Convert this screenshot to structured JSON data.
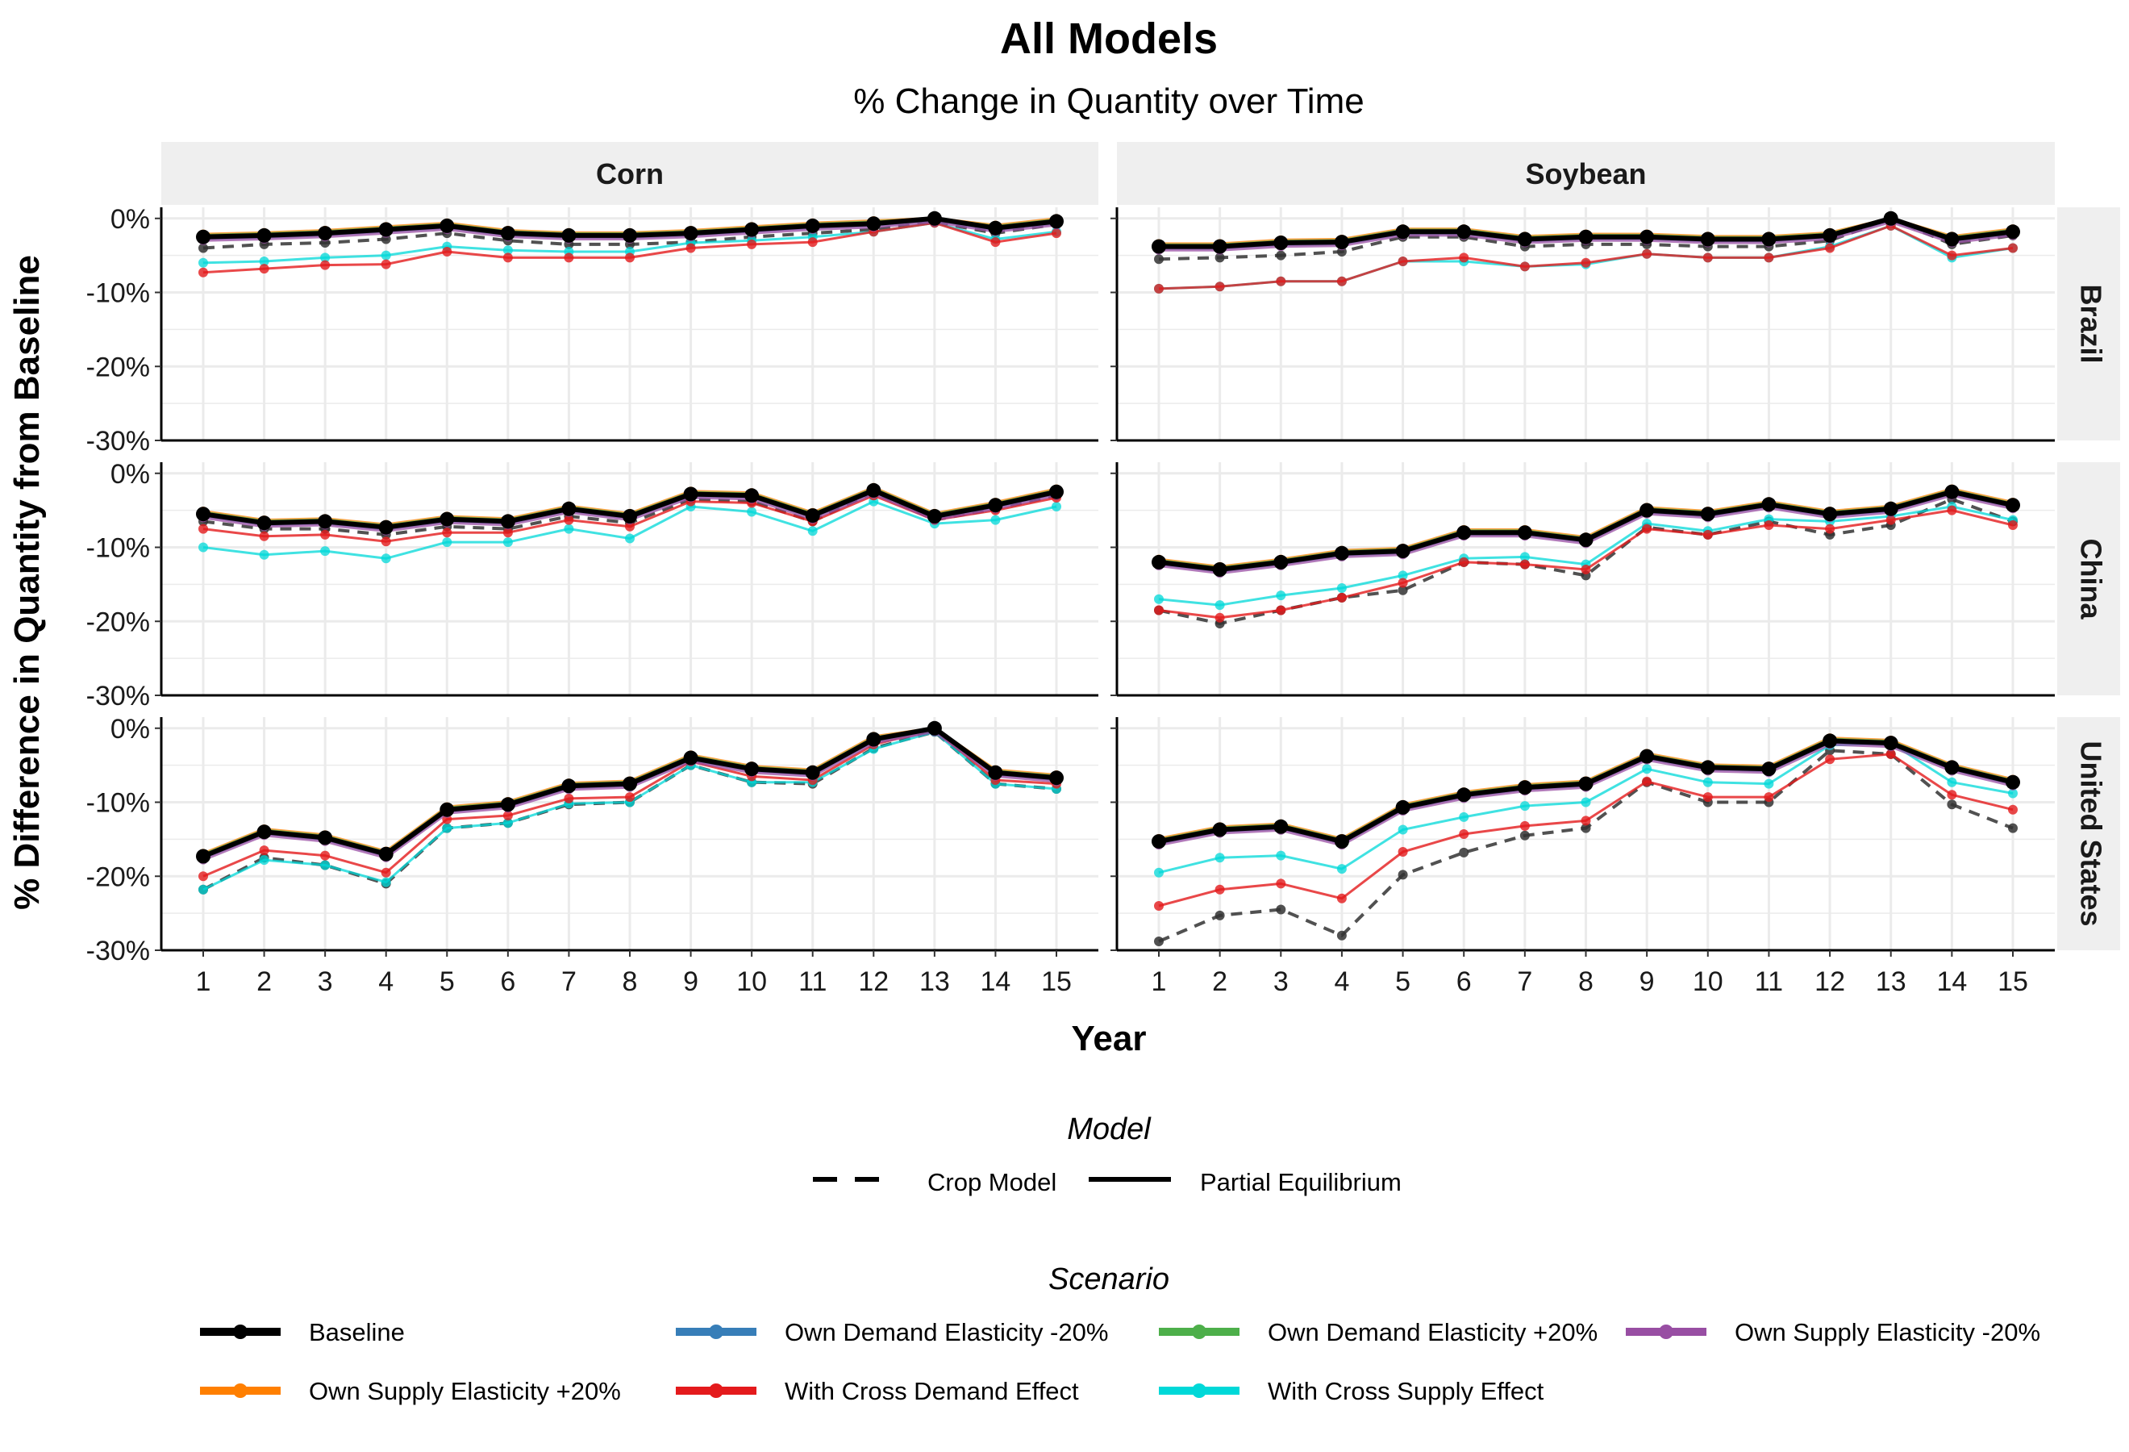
{
  "title": "All Models",
  "subtitle": "% Change in Quantity over Time",
  "xlabel": "Year",
  "ylabel": "% Difference in Quantity from Baseline",
  "legend_model_title": "Model",
  "legend_scenario_title": "Scenario",
  "chart_data": {
    "type": "line",
    "x": [
      1,
      2,
      3,
      4,
      5,
      6,
      7,
      8,
      9,
      10,
      11,
      12,
      13,
      14,
      15
    ],
    "ylim": [
      -30,
      1.5
    ],
    "yticks": [
      0,
      -10,
      -20,
      -30
    ],
    "ytick_labels": [
      "0%",
      "-10%",
      "-20%",
      "-30%"
    ],
    "columns": [
      "Corn",
      "Soybean"
    ],
    "rows": [
      "Brazil",
      "China",
      "United States"
    ],
    "models": [
      {
        "name": "Crop Model",
        "dash": "dashed"
      },
      {
        "name": "Partial Equilibrium",
        "dash": "solid"
      }
    ],
    "scenarios": [
      {
        "name": "Baseline",
        "color": "#000000"
      },
      {
        "name": "Own Demand Elasticity -20%",
        "color": "#377eb8"
      },
      {
        "name": "Own Demand Elasticity +20%",
        "color": "#4daf4a"
      },
      {
        "name": "Own Supply Elasticity -20%",
        "color": "#984ea3"
      },
      {
        "name": "Own Supply Elasticity +20%",
        "color": "#ff7f00"
      },
      {
        "name": "With Cross Demand Effect",
        "color": "#e41a1c"
      },
      {
        "name": "With Cross Supply Effect",
        "color": "#00d8d8"
      }
    ],
    "panels": [
      {
        "row": "Brazil",
        "col": "Corn",
        "crop_model": [
          -4,
          -3.5,
          -3.3,
          -2.8,
          -2,
          -3,
          -3.5,
          -3.5,
          -3.2,
          -2.5,
          -2,
          -1.5,
          -0.5,
          -2,
          -0.8
        ],
        "baseline": [
          -2.5,
          -2.3,
          -2,
          -1.5,
          -1,
          -2,
          -2.3,
          -2.3,
          -2,
          -1.5,
          -1,
          -0.7,
          0,
          -1.3,
          -0.4
        ],
        "cross_demand": [
          -7.3,
          -6.8,
          -6.3,
          -6.2,
          -4.5,
          -5.3,
          -5.3,
          -5.3,
          -4,
          -3.5,
          -3.2,
          -1.8,
          -0.6,
          -3.2,
          -2
        ],
        "cross_supply": [
          -6,
          -5.8,
          -5.3,
          -5,
          -3.8,
          -4.3,
          -4.5,
          -4.5,
          -3.3,
          -3,
          -2.5,
          -1.8,
          -0.6,
          -2.8,
          -1.8
        ]
      },
      {
        "row": "Brazil",
        "col": "Soybean",
        "crop_model": [
          -5.5,
          -5.3,
          -5,
          -4.5,
          -2.5,
          -2.5,
          -3.8,
          -3.5,
          -3.5,
          -3.8,
          -3.8,
          -3,
          0,
          -3.5,
          -2.3
        ],
        "baseline": [
          -3.8,
          -3.8,
          -3.3,
          -3.2,
          -1.8,
          -1.8,
          -2.8,
          -2.5,
          -2.5,
          -2.8,
          -2.8,
          -2.3,
          0,
          -2.8,
          -1.8
        ],
        "cross_demand": [
          -9.5,
          -9.2,
          -8.5,
          -8.5,
          -5.8,
          -5.3,
          -6.5,
          -6,
          -4.8,
          -5.3,
          -5.3,
          -4,
          -1,
          -5,
          -4
        ],
        "cross_supply": [
          -9.5,
          -9.2,
          -8.5,
          -8.5,
          -5.8,
          -5.8,
          -6.5,
          -6.2,
          -4.8,
          -5.3,
          -5.3,
          -3.8,
          -1,
          -5.3,
          -4
        ]
      },
      {
        "row": "China",
        "col": "Corn",
        "crop_model": [
          -6.5,
          -7.5,
          -7.5,
          -8.3,
          -7.2,
          -7.5,
          -5.8,
          -6.7,
          -3.5,
          -3.8,
          -6.5,
          -2.5,
          -6.3,
          -4.8,
          -3
        ],
        "baseline": [
          -5.5,
          -6.7,
          -6.5,
          -7.3,
          -6.2,
          -6.5,
          -4.8,
          -5.8,
          -2.8,
          -3,
          -5.7,
          -2.3,
          -5.8,
          -4.3,
          -2.5
        ],
        "cross_demand": [
          -7.5,
          -8.5,
          -8.3,
          -9.2,
          -8,
          -8,
          -6.3,
          -7.2,
          -3.8,
          -4,
          -6.5,
          -3,
          -6.3,
          -5,
          -3.3
        ],
        "cross_supply": [
          -10,
          -11,
          -10.5,
          -11.5,
          -9.3,
          -9.3,
          -7.5,
          -8.8,
          -4.5,
          -5.2,
          -7.8,
          -3.8,
          -6.8,
          -6.3,
          -4.5
        ]
      },
      {
        "row": "China",
        "col": "Soybean",
        "crop_model": [
          -18.5,
          -20.3,
          -18.5,
          -16.8,
          -15.8,
          -12,
          -12.3,
          -13.8,
          -7.3,
          -8.3,
          -6.5,
          -8.3,
          -7,
          -3.5,
          -6.5
        ],
        "baseline": [
          -12,
          -13,
          -12,
          -10.8,
          -10.5,
          -8,
          -8,
          -9,
          -5,
          -5.5,
          -4.2,
          -5.5,
          -4.8,
          -2.5,
          -4.3
        ],
        "cross_demand": [
          -18.5,
          -19.5,
          -18.5,
          -16.8,
          -14.8,
          -12,
          -12.3,
          -13,
          -7.5,
          -8.3,
          -7,
          -7.5,
          -6.3,
          -5,
          -7
        ],
        "cross_supply": [
          -17,
          -17.8,
          -16.5,
          -15.5,
          -13.8,
          -11.5,
          -11.3,
          -12.3,
          -6.8,
          -7.8,
          -6.2,
          -6.5,
          -5.8,
          -4.5,
          -6.3
        ]
      },
      {
        "row": "United States",
        "col": "Corn",
        "crop_model": [
          -21.8,
          -17.5,
          -18.5,
          -21,
          -13.5,
          -12.8,
          -10.3,
          -10,
          -5,
          -7.3,
          -7.5,
          -2.7,
          -0.5,
          -7.5,
          -8.2
        ],
        "baseline": [
          -17.3,
          -14,
          -14.8,
          -17,
          -11,
          -10.3,
          -7.8,
          -7.5,
          -4,
          -5.5,
          -6,
          -1.5,
          0,
          -6,
          -6.7
        ],
        "cross_demand": [
          -20,
          -16.5,
          -17.2,
          -19.5,
          -12.3,
          -11.8,
          -9.5,
          -9.3,
          -4.5,
          -6.5,
          -7,
          -2.2,
          -0.2,
          -7,
          -7.5
        ],
        "cross_supply": [
          -21.8,
          -17.8,
          -18.5,
          -20.8,
          -13.5,
          -12.8,
          -10.2,
          -10,
          -5,
          -7.3,
          -7.3,
          -2.8,
          -0.5,
          -7.5,
          -8.2
        ]
      },
      {
        "row": "United States",
        "col": "Soybean",
        "crop_model": [
          -28.8,
          -25.3,
          -24.5,
          -28,
          -19.8,
          -16.8,
          -14.5,
          -13.5,
          -7.3,
          -10,
          -10,
          -3,
          -3.5,
          -10.3,
          -13.5
        ],
        "baseline": [
          -15.3,
          -13.7,
          -13.3,
          -15.3,
          -10.7,
          -9,
          -8,
          -7.5,
          -3.8,
          -5.3,
          -5.5,
          -1.7,
          -2,
          -5.3,
          -7.3
        ],
        "cross_demand": [
          -24,
          -21.8,
          -21,
          -23,
          -16.7,
          -14.3,
          -13.2,
          -12.5,
          -7.2,
          -9.3,
          -9.3,
          -4.2,
          -3.5,
          -9,
          -11
        ],
        "cross_supply": [
          -19.5,
          -17.5,
          -17.2,
          -19,
          -13.7,
          -12,
          -10.5,
          -10,
          -5.5,
          -7.3,
          -7.5,
          -2.3,
          -2,
          -7.3,
          -8.8
        ]
      }
    ]
  }
}
